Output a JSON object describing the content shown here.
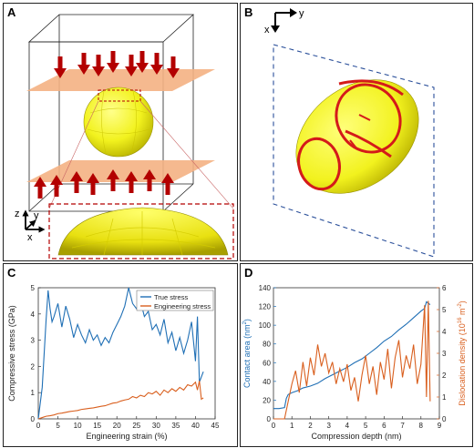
{
  "panels": {
    "a_label": "A",
    "b_label": "B",
    "c_label": "C",
    "d_label": "D"
  },
  "axes_a": {
    "z": "z",
    "y": "y",
    "x": "x"
  },
  "axes_b": {
    "y": "y",
    "x": "x"
  },
  "colors": {
    "true_stress": "#1f6fb5",
    "eng_stress": "#d95f1e",
    "contact_area": "#1f6fb5",
    "dislocation": "#d95f1e",
    "sphere": "#f2f21e",
    "plate": "#f4b183",
    "arrow": "#b30000",
    "defect": "#d41a1a"
  },
  "chart_data": [
    {
      "type": "line",
      "panel": "C",
      "xlabel": "Engineering strain (%)",
      "ylabel": "Compressive stress (GPa)",
      "xlim": [
        0,
        45
      ],
      "ylim": [
        0,
        5
      ],
      "xticks": [
        "0",
        "5",
        "10",
        "15",
        "20",
        "25",
        "30",
        "35",
        "40",
        "45"
      ],
      "yticks": [
        "0",
        "1",
        "2",
        "3",
        "4",
        "5"
      ],
      "legend_position": "top-right",
      "series": [
        {
          "name": "True stress",
          "x": [
            0,
            1,
            2,
            2.5,
            3,
            3.5,
            4,
            5,
            6,
            7,
            8,
            9,
            10,
            11,
            12,
            13,
            14,
            15,
            16,
            17,
            18,
            19,
            20,
            21,
            22,
            23,
            23.5,
            24,
            25,
            26,
            27,
            28,
            29,
            30,
            31,
            32,
            33,
            34,
            35,
            36,
            37,
            38,
            39,
            40,
            40.5,
            41,
            41.5,
            42
          ],
          "y": [
            0,
            1.2,
            3.8,
            4.9,
            4.2,
            3.7,
            3.9,
            4.4,
            3.5,
            4.3,
            3.8,
            3.1,
            3.6,
            3.2,
            2.9,
            3.4,
            3.0,
            3.2,
            2.8,
            3.1,
            2.9,
            3.3,
            3.6,
            3.9,
            4.3,
            5.0,
            4.7,
            4.4,
            4.2,
            4.5,
            3.9,
            4.1,
            3.4,
            3.6,
            3.2,
            3.8,
            2.9,
            3.3,
            2.6,
            3.1,
            2.5,
            3.0,
            3.7,
            2.2,
            3.9,
            1.4,
            1.6,
            1.8
          ]
        },
        {
          "name": "Engineering stress",
          "x": [
            0,
            1,
            2,
            3,
            4,
            5,
            6,
            7,
            8,
            9,
            10,
            11,
            12,
            13,
            14,
            15,
            16,
            17,
            18,
            19,
            20,
            21,
            22,
            23,
            24,
            25,
            26,
            27,
            28,
            29,
            30,
            31,
            32,
            33,
            34,
            35,
            36,
            37,
            38,
            39,
            40,
            40.5,
            41,
            41.5,
            42
          ],
          "y": [
            0,
            0.05,
            0.1,
            0.12,
            0.15,
            0.2,
            0.22,
            0.25,
            0.28,
            0.3,
            0.32,
            0.36,
            0.38,
            0.4,
            0.42,
            0.45,
            0.48,
            0.5,
            0.55,
            0.6,
            0.62,
            0.68,
            0.72,
            0.75,
            0.85,
            0.8,
            0.9,
            0.85,
            1.0,
            0.95,
            1.05,
            0.9,
            1.1,
            1.0,
            1.15,
            1.05,
            1.2,
            1.1,
            1.3,
            1.25,
            1.4,
            1.1,
            1.45,
            0.75,
            0.8
          ]
        }
      ]
    },
    {
      "type": "line",
      "panel": "D",
      "xlabel": "Compression depth (nm)",
      "ylabel_left": "Contact area (nm",
      "ylabel_left_sup": "2",
      "ylabel_left_tail": ")",
      "ylabel_right": "Dislocation density  (10",
      "ylabel_right_sup": "16",
      "ylabel_right_mid": " m",
      "ylabel_right_sup2": "-2",
      "ylabel_right_tail": ")",
      "xlim": [
        0,
        9
      ],
      "ylim_left": [
        0,
        140
      ],
      "ylim_right": [
        0,
        6
      ],
      "xticks": [
        "0",
        "1",
        "2",
        "3",
        "4",
        "5",
        "6",
        "7",
        "8",
        "9"
      ],
      "yticks_left": [
        "0",
        "20",
        "40",
        "60",
        "80",
        "100",
        "120",
        "140"
      ],
      "yticks_right": [
        "0",
        "1",
        "2",
        "3",
        "4",
        "5",
        "6"
      ],
      "series": [
        {
          "name": "Contact area",
          "axis": "left",
          "x": [
            0,
            0.3,
            0.6,
            0.7,
            0.8,
            1.0,
            1.3,
            1.6,
            2.0,
            2.4,
            2.8,
            3.2,
            3.6,
            4.0,
            4.4,
            4.8,
            5.2,
            5.6,
            6.0,
            6.4,
            6.8,
            7.2,
            7.6,
            8.0,
            8.2,
            8.3,
            8.5
          ],
          "y": [
            11,
            11,
            12,
            22,
            26,
            28,
            30,
            33,
            35,
            38,
            43,
            47,
            51,
            55,
            60,
            64,
            70,
            76,
            83,
            88,
            95,
            101,
            108,
            115,
            118,
            125,
            122
          ]
        },
        {
          "name": "Dislocation density",
          "axis": "right",
          "x": [
            0,
            0.6,
            0.7,
            0.8,
            1.0,
            1.2,
            1.4,
            1.6,
            1.8,
            2.0,
            2.2,
            2.4,
            2.6,
            2.8,
            3.0,
            3.2,
            3.4,
            3.6,
            3.8,
            4.0,
            4.2,
            4.4,
            4.6,
            4.8,
            5.0,
            5.2,
            5.4,
            5.6,
            5.8,
            6.0,
            6.2,
            6.4,
            6.6,
            6.8,
            7.0,
            7.2,
            7.4,
            7.6,
            7.8,
            8.0,
            8.2,
            8.3,
            8.4,
            8.5
          ],
          "y": [
            0,
            0,
            0.4,
            0.8,
            1.6,
            2.2,
            1.2,
            2.6,
            1.5,
            2.8,
            2.0,
            3.4,
            2.4,
            3.0,
            2.1,
            2.6,
            1.6,
            2.3,
            1.7,
            2.5,
            1.3,
            1.9,
            0.8,
            2.0,
            2.9,
            1.6,
            2.4,
            1.1,
            2.6,
            1.8,
            3.2,
            1.4,
            2.8,
            3.6,
            1.9,
            2.9,
            2.3,
            3.4,
            1.6,
            2.5,
            5.2,
            1.0,
            5.4,
            0.8
          ]
        }
      ]
    }
  ]
}
